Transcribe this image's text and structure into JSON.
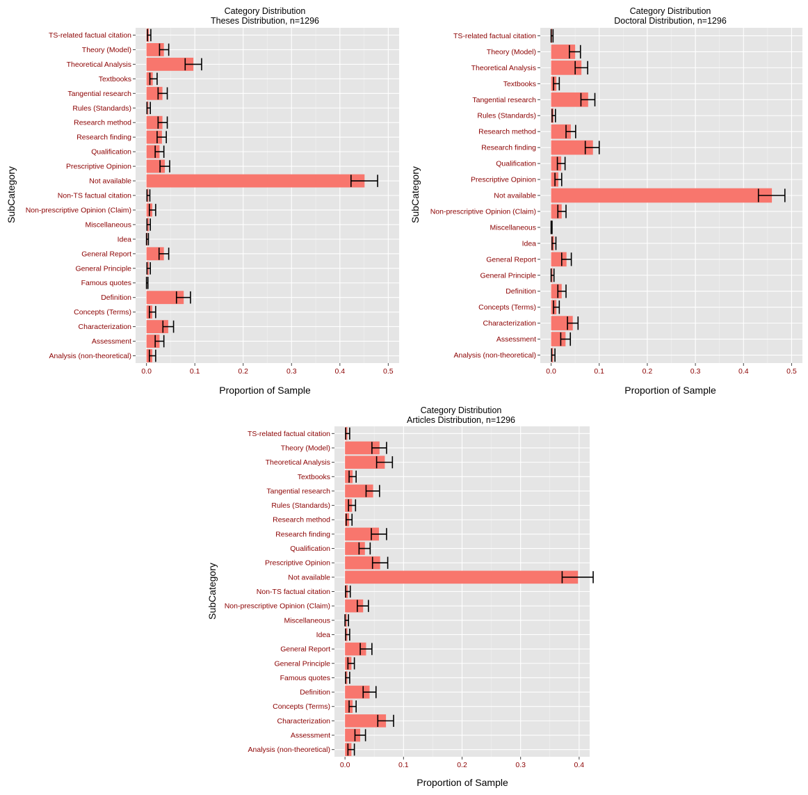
{
  "colors": {
    "bar": "#f8766d",
    "panel": "#e5e5e5",
    "label": "#8b0000"
  },
  "chart_data": [
    {
      "type": "bar",
      "orientation": "horizontal",
      "title": "Category Distribution",
      "subtitle": "Theses Distribution, n=1296",
      "xlabel": "Proportion of Sample",
      "ylabel": "SubCategory",
      "xlim": [
        0,
        0.5
      ],
      "xticks": [
        "0.0",
        "0.1",
        "0.2",
        "0.3",
        "0.4",
        "0.5"
      ],
      "grid": true,
      "categories": [
        "TS-related factual citation",
        "Theory (Model)",
        "Theoretical Analysis",
        "Textbooks",
        "Tangential research",
        "Rules (Standards)",
        "Research method",
        "Research finding",
        "Qualification",
        "Prescriptive Opinion",
        "Not available",
        "Non-TS factual citation",
        "Non-prescriptive Opinion (Claim)",
        "Miscellaneous",
        "Idea",
        "General Report",
        "General Principle",
        "Famous quotes",
        "Definition",
        "Concepts (Terms)",
        "Characterization",
        "Assessment",
        "Analysis (non-theoretical)"
      ],
      "values": [
        0.005,
        0.036,
        0.097,
        0.013,
        0.033,
        0.004,
        0.033,
        0.032,
        0.027,
        0.038,
        0.451,
        0.004,
        0.012,
        0.005,
        0.002,
        0.036,
        0.005,
        0.001,
        0.077,
        0.012,
        0.045,
        0.027,
        0.012
      ],
      "error_low": [
        0.002,
        0.027,
        0.08,
        0.007,
        0.024,
        0.001,
        0.024,
        0.022,
        0.018,
        0.028,
        0.423,
        0.001,
        0.006,
        0.001,
        0.0,
        0.026,
        0.001,
        0.0,
        0.062,
        0.006,
        0.034,
        0.018,
        0.006
      ],
      "error_high": [
        0.009,
        0.046,
        0.114,
        0.022,
        0.043,
        0.008,
        0.043,
        0.041,
        0.036,
        0.048,
        0.478,
        0.007,
        0.019,
        0.008,
        0.004,
        0.046,
        0.008,
        0.003,
        0.091,
        0.019,
        0.056,
        0.036,
        0.019
      ]
    },
    {
      "type": "bar",
      "orientation": "horizontal",
      "title": "Category Distribution",
      "subtitle": "Doctoral Distribution, n=1296",
      "xlabel": "Proportion of Sample",
      "ylabel": "SubCategory",
      "xlim": [
        0,
        0.5
      ],
      "xticks": [
        "0.0",
        "0.1",
        "0.2",
        "0.3",
        "0.4",
        "0.5"
      ],
      "grid": true,
      "categories": [
        "TS-related factual citation",
        "Theory (Model)",
        "Theoretical Analysis",
        "Textbooks",
        "Tangential research",
        "Rules (Standards)",
        "Research method",
        "Research finding",
        "Qualification",
        "Prescriptive Opinion",
        "Not available",
        "Non-prescriptive Opinion (Claim)",
        "Miscellaneous",
        "Idea",
        "General Report",
        "General Principle",
        "Definition",
        "Concepts (Terms)",
        "Characterization",
        "Assessment",
        "Analysis (non-theoretical)"
      ],
      "values": [
        0.002,
        0.05,
        0.063,
        0.011,
        0.077,
        0.005,
        0.041,
        0.087,
        0.021,
        0.015,
        0.459,
        0.022,
        0.001,
        0.006,
        0.032,
        0.003,
        0.022,
        0.011,
        0.045,
        0.03,
        0.004
      ],
      "error_low": [
        0.0,
        0.038,
        0.05,
        0.005,
        0.062,
        0.002,
        0.031,
        0.071,
        0.013,
        0.008,
        0.431,
        0.014,
        0.0,
        0.002,
        0.022,
        0.0,
        0.014,
        0.005,
        0.034,
        0.02,
        0.001
      ],
      "error_high": [
        0.004,
        0.061,
        0.076,
        0.017,
        0.091,
        0.009,
        0.051,
        0.1,
        0.029,
        0.022,
        0.486,
        0.031,
        0.002,
        0.01,
        0.042,
        0.006,
        0.031,
        0.017,
        0.056,
        0.04,
        0.008
      ]
    },
    {
      "type": "bar",
      "orientation": "horizontal",
      "title": "Category Distribution",
      "subtitle": "Articles Distribution, n=1296",
      "xlabel": "Proportion of Sample",
      "ylabel": "SubCategory",
      "xlim": [
        0,
        0.4
      ],
      "xticks": [
        "0.0",
        "0.1",
        "0.2",
        "0.3",
        "0.4"
      ],
      "grid": true,
      "categories": [
        "TS-related factual citation",
        "Theory (Model)",
        "Theoretical Analysis",
        "Textbooks",
        "Tangential research",
        "Rules (Standards)",
        "Research method",
        "Research finding",
        "Qualification",
        "Prescriptive Opinion",
        "Not available",
        "Non-TS factual citation",
        "Non-prescriptive Opinion (Claim)",
        "Miscellaneous",
        "Idea",
        "General Report",
        "General Principle",
        "Famous quotes",
        "Definition",
        "Concepts (Terms)",
        "Characterization",
        "Assessment",
        "Analysis (non-theoretical)"
      ],
      "values": [
        0.004,
        0.059,
        0.068,
        0.013,
        0.048,
        0.012,
        0.007,
        0.058,
        0.034,
        0.06,
        0.398,
        0.005,
        0.031,
        0.003,
        0.004,
        0.036,
        0.011,
        0.004,
        0.042,
        0.013,
        0.07,
        0.026,
        0.011
      ],
      "error_low": [
        0.001,
        0.046,
        0.054,
        0.007,
        0.036,
        0.006,
        0.002,
        0.045,
        0.024,
        0.047,
        0.371,
        0.001,
        0.021,
        0.0,
        0.001,
        0.026,
        0.005,
        0.001,
        0.031,
        0.007,
        0.056,
        0.017,
        0.005
      ],
      "error_high": [
        0.008,
        0.071,
        0.081,
        0.019,
        0.059,
        0.018,
        0.012,
        0.071,
        0.043,
        0.073,
        0.424,
        0.009,
        0.04,
        0.006,
        0.008,
        0.046,
        0.016,
        0.008,
        0.053,
        0.019,
        0.083,
        0.035,
        0.016
      ]
    }
  ]
}
